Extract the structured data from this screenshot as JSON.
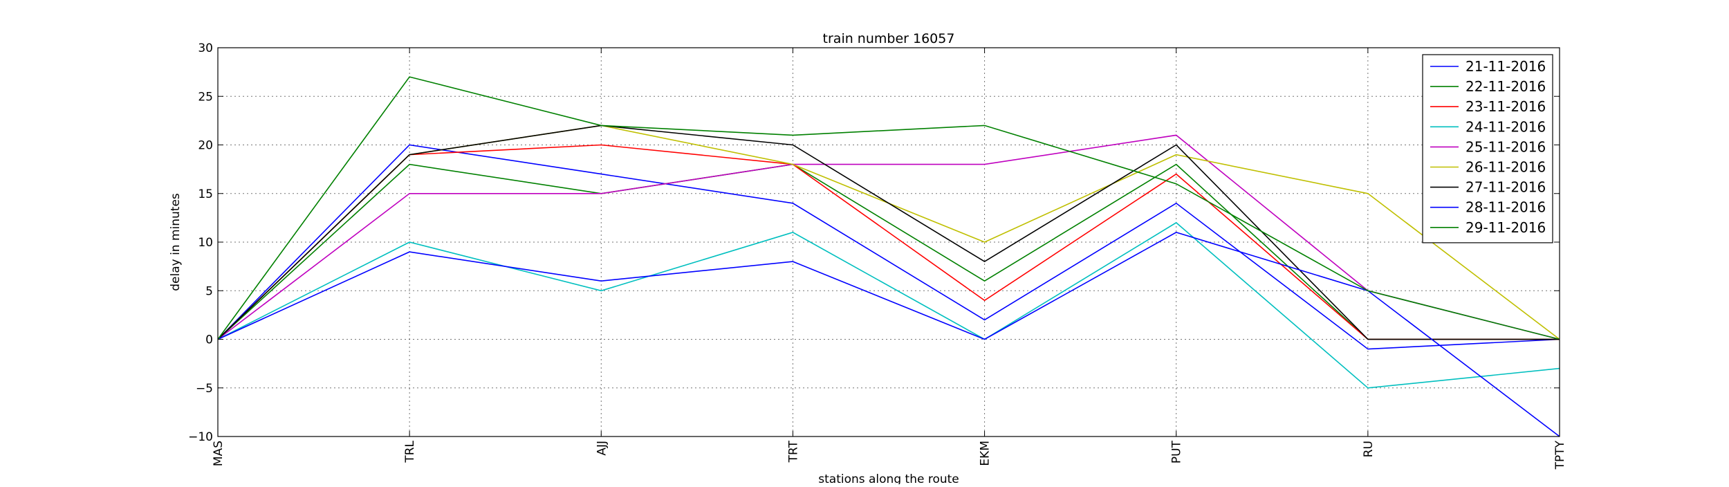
{
  "chart_data": {
    "type": "line",
    "title": "train number 16057",
    "xlabel": "stations along the route",
    "ylabel": "delay in minutes",
    "categories": [
      "MAS",
      "TRL",
      "AJJ",
      "TRT",
      "EKM",
      "PUT",
      "RU",
      "TPTY"
    ],
    "ylim": [
      -10,
      30
    ],
    "yticks": [
      -10,
      -5,
      0,
      5,
      10,
      15,
      20,
      25,
      30
    ],
    "ytick_labels": [
      "−10",
      "−5",
      "0",
      "5",
      "10",
      "15",
      "20",
      "25",
      "30"
    ],
    "grid": true,
    "legend_position": "top-right",
    "series": [
      {
        "name": "21-11-2016",
        "color": "#0000ff",
        "values": [
          0,
          20,
          17,
          14,
          2,
          14,
          -1,
          0
        ]
      },
      {
        "name": "22-11-2016",
        "color": "#008000",
        "values": [
          0,
          18,
          15,
          18,
          6,
          18,
          0,
          0
        ]
      },
      {
        "name": "23-11-2016",
        "color": "#ff0000",
        "values": [
          0,
          19,
          20,
          18,
          4,
          17,
          0,
          0
        ]
      },
      {
        "name": "24-11-2016",
        "color": "#00bfbf",
        "values": [
          0,
          10,
          5,
          11,
          0,
          12,
          -5,
          -3
        ]
      },
      {
        "name": "25-11-2016",
        "color": "#bf00bf",
        "values": [
          0,
          15,
          15,
          18,
          18,
          21,
          5,
          0
        ]
      },
      {
        "name": "26-11-2016",
        "color": "#bfbf00",
        "values": [
          0,
          19,
          22,
          18,
          10,
          19,
          15,
          0
        ]
      },
      {
        "name": "27-11-2016",
        "color": "#000000",
        "values": [
          0,
          19,
          22,
          20,
          8,
          20,
          0,
          0
        ]
      },
      {
        "name": "28-11-2016",
        "color": "#0000ff",
        "values": [
          0,
          9,
          6,
          8,
          0,
          11,
          5,
          -10
        ]
      },
      {
        "name": "29-11-2016",
        "color": "#008000",
        "values": [
          0,
          27,
          22,
          21,
          22,
          16,
          5,
          0
        ]
      }
    ]
  }
}
